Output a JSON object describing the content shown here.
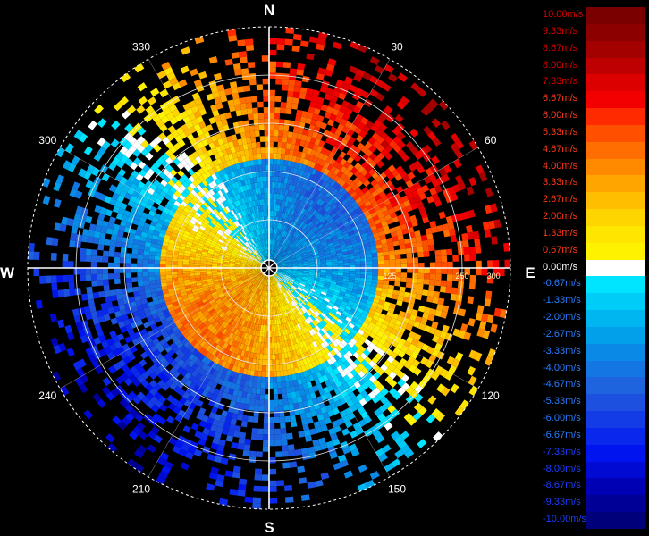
{
  "chart_data": {
    "type": "heatmap",
    "projection": "polar-ppi",
    "quantity": "radial velocity",
    "compass_labels": [
      "N",
      "E",
      "S",
      "W"
    ],
    "azimuth_labels": [
      30,
      60,
      120,
      150,
      210,
      240,
      300,
      330
    ],
    "range_labels": [
      "125",
      "250",
      "300"
    ],
    "range_rings_count": 5,
    "grid": true,
    "velocity_pattern": {
      "away_peak_azimuth_deg": 45,
      "toward_peak_azimuth_deg": 225,
      "inner_zone_reverse": true
    },
    "colorbar": {
      "position": "right",
      "levels": [
        {
          "label": "10.00m/s",
          "color": "#7a0000"
        },
        {
          "label": "9.33m/s",
          "color": "#8c0000"
        },
        {
          "label": "8.67m/s",
          "color": "#a30000"
        },
        {
          "label": "8.00m/s",
          "color": "#bf0000"
        },
        {
          "label": "7.33m/s",
          "color": "#dc0000"
        },
        {
          "label": "6.67m/s",
          "color": "#f20000"
        },
        {
          "label": "6.00m/s",
          "color": "#ff2a00"
        },
        {
          "label": "5.33m/s",
          "color": "#ff5000"
        },
        {
          "label": "4.67m/s",
          "color": "#ff6e00"
        },
        {
          "label": "4.00m/s",
          "color": "#ff8a00"
        },
        {
          "label": "3.33m/s",
          "color": "#ffa500"
        },
        {
          "label": "2.67m/s",
          "color": "#ffbf00"
        },
        {
          "label": "2.00m/s",
          "color": "#ffd500"
        },
        {
          "label": "1.33m/s",
          "color": "#ffe600"
        },
        {
          "label": "0.67m/s",
          "color": "#fff200"
        },
        {
          "label": "0.00m/s",
          "color": "#ffffff"
        },
        {
          "label": "-0.67m/s",
          "color": "#00e5ff"
        },
        {
          "label": "-1.33m/s",
          "color": "#00cdf7"
        },
        {
          "label": "-2.00m/s",
          "color": "#00b6f0"
        },
        {
          "label": "-2.67m/s",
          "color": "#00a0ea"
        },
        {
          "label": "-3.33m/s",
          "color": "#0a8ae6"
        },
        {
          "label": "-4.00m/s",
          "color": "#1476e2"
        },
        {
          "label": "-4.67m/s",
          "color": "#1e64de"
        },
        {
          "label": "-5.33m/s",
          "color": "#1e50e0"
        },
        {
          "label": "-6.00m/s",
          "color": "#143ce6"
        },
        {
          "label": "-6.67m/s",
          "color": "#0a28eb"
        },
        {
          "label": "-7.33m/s",
          "color": "#0014f0"
        },
        {
          "label": "-8.00m/s",
          "color": "#000ad2"
        },
        {
          "label": "-8.67m/s",
          "color": "#0000b4"
        },
        {
          "label": "-9.33m/s",
          "color": "#000096"
        },
        {
          "label": "-10.00m/s",
          "color": "#00007a"
        }
      ]
    }
  }
}
